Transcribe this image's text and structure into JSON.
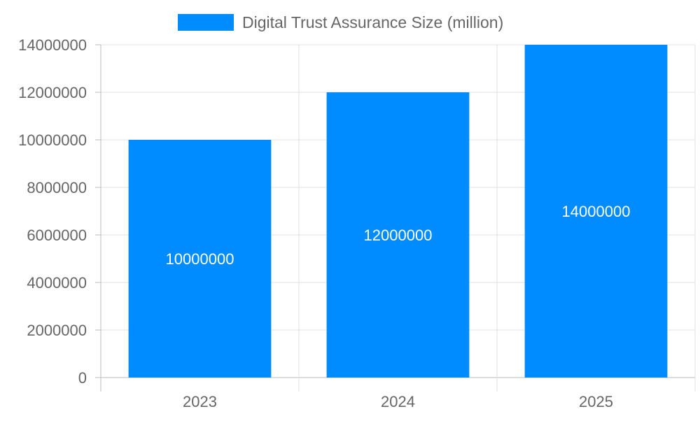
{
  "chart_data": {
    "type": "bar",
    "title": "",
    "xlabel": "",
    "ylabel": "",
    "categories": [
      "2023",
      "2024",
      "2025"
    ],
    "series": [
      {
        "name": "Digital Trust Assurance Size (million)",
        "values": [
          10000000,
          12000000,
          14000000
        ],
        "color": "#008cff"
      }
    ],
    "ylim": [
      0,
      14000000
    ],
    "yticks": [
      0,
      2000000,
      4000000,
      6000000,
      8000000,
      10000000,
      12000000,
      14000000
    ],
    "grid": true,
    "legend": "top-center",
    "data_labels": true
  }
}
